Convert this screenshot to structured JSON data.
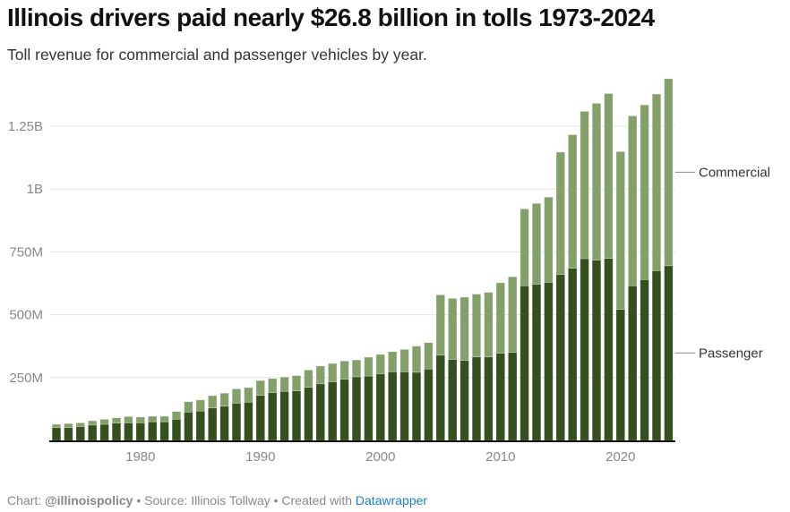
{
  "header": {
    "title": "Illinois drivers paid nearly $26.8 billion in tolls 1973-2024",
    "subtitle": "Toll revenue for commercial and passenger vehicles by year."
  },
  "footer": {
    "chart_prefix": "Chart: ",
    "chart_author": "@illinoispolicy",
    "source": " • Source: Illinois Tollway  • Created with ",
    "tool": "Datawrapper"
  },
  "chart_data": {
    "type": "bar",
    "stacked": true,
    "title": "Illinois drivers paid nearly $26.8 billion in tolls 1973-2024",
    "subtitle": "Toll revenue for commercial and passenger vehicles by year.",
    "xlabel": "",
    "ylabel": "",
    "unit": "USD millions",
    "ylim": [
      0,
      1440
    ],
    "grid": true,
    "legend": "right, labels inline",
    "x_ticks": [
      "1980",
      "1990",
      "2000",
      "2010",
      "2020"
    ],
    "y_ticks": [
      {
        "value": 250,
        "label": "250M"
      },
      {
        "value": 500,
        "label": "500M"
      },
      {
        "value": 750,
        "label": "750M"
      },
      {
        "value": 1000,
        "label": "1B"
      },
      {
        "value": 1250,
        "label": "1.25B"
      }
    ],
    "categories": [
      1973,
      1974,
      1975,
      1976,
      1977,
      1978,
      1979,
      1980,
      1981,
      1982,
      1983,
      1984,
      1985,
      1986,
      1987,
      1988,
      1989,
      1990,
      1991,
      1992,
      1993,
      1994,
      1995,
      1996,
      1997,
      1998,
      1999,
      2000,
      2001,
      2002,
      2003,
      2004,
      2005,
      2006,
      2007,
      2008,
      2009,
      2010,
      2011,
      2012,
      2013,
      2014,
      2015,
      2016,
      2017,
      2018,
      2019,
      2020,
      2021,
      2022,
      2023,
      2024
    ],
    "series": [
      {
        "name": "Passenger",
        "color": "#354f1e",
        "values": [
          51,
          51,
          55,
          61,
          64,
          69,
          70,
          70,
          74,
          74,
          84,
          113,
          117,
          129,
          136,
          148,
          152,
          179,
          190,
          195,
          197,
          211,
          225,
          233,
          243,
          253,
          256,
          265,
          273,
          273,
          271,
          284,
          339,
          322,
          318,
          332,
          332,
          347,
          350,
          615,
          621,
          629,
          660,
          685,
          723,
          717,
          724,
          521,
          615,
          640,
          675,
          695
        ]
      },
      {
        "name": "Commercial",
        "color": "#84a06a",
        "values": [
          13,
          16,
          15,
          17,
          20,
          21,
          25,
          23,
          22,
          22,
          31,
          41,
          44,
          49,
          52,
          57,
          58,
          59,
          56,
          57,
          61,
          69,
          71,
          73,
          73,
          67,
          75,
          77,
          80,
          89,
          104,
          105,
          240,
          243,
          252,
          250,
          257,
          280,
          301,
          306,
          322,
          339,
          487,
          531,
          586,
          624,
          656,
          628,
          676,
          695,
          703,
          744
        ]
      }
    ]
  }
}
